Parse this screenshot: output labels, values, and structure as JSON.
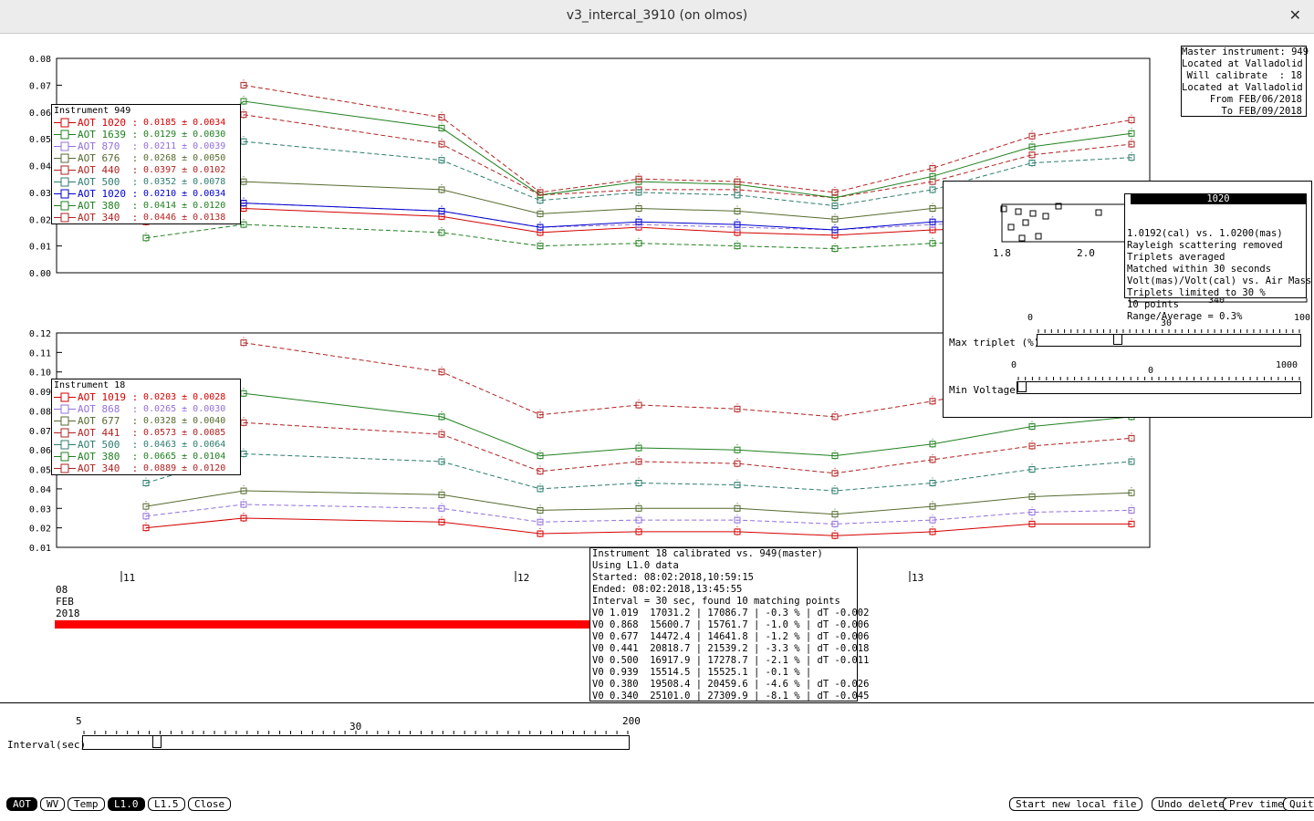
{
  "window": {
    "title": "v3_intercal_3910 (on olmos)",
    "close_glyph": "✕"
  },
  "top_axis_ticks": [
    "0.08",
    "0.07",
    "0.06",
    "0.05",
    "0.04",
    "0.03",
    "0.02",
    "0.01",
    "0.00"
  ],
  "bottom_axis_ticks": [
    "0.12",
    "0.11",
    "0.10",
    "0.09",
    "0.08",
    "0.07",
    "0.06",
    "0.05",
    "0.04",
    "0.03",
    "0.02",
    "0.01"
  ],
  "legend_top": {
    "title": "Instrument 949",
    "rows": [
      {
        "label": "AOT 1020 :",
        "value": "0.0185 ± 0.0034",
        "color": "#d40000",
        "marker": "square"
      },
      {
        "label": "AOT 1639 :",
        "value": "0.0129 ± 0.0030",
        "color": "#208020",
        "marker": "tri-down"
      },
      {
        "label": "AOT 870  :",
        "value": "0.0211 ± 0.0039",
        "color": "#9370db",
        "marker": "star"
      },
      {
        "label": "AOT 676  :",
        "value": "0.0268 ± 0.0050",
        "color": "#556b2f",
        "marker": "tri-up"
      },
      {
        "label": "AOT 440  :",
        "value": "0.0397 ± 0.0102",
        "color": "#b22222",
        "marker": "square"
      },
      {
        "label": "AOT 500  :",
        "value": "0.0352 ± 0.0078",
        "color": "#2e7d6e",
        "marker": "tri-down"
      },
      {
        "label": "AOT 1020 :",
        "value": "0.0210 ± 0.0034",
        "color": "#0000cc",
        "marker": "tri-up"
      },
      {
        "label": "AOT 380  :",
        "value": "0.0414 ± 0.0120",
        "color": "#208020",
        "marker": "star"
      },
      {
        "label": "AOT 340  :",
        "value": "0.0446 ± 0.0138",
        "color": "#b22222",
        "marker": "tri-up"
      }
    ]
  },
  "legend_bottom": {
    "title": "Instrument 18",
    "rows": [
      {
        "label": "AOT 1019 :",
        "value": "0.0203 ± 0.0028",
        "color": "#d40000",
        "marker": "square"
      },
      {
        "label": "AOT 868  :",
        "value": "0.0265 ± 0.0030",
        "color": "#9370db",
        "marker": "star"
      },
      {
        "label": "AOT 677  :",
        "value": "0.0328 ± 0.0040",
        "color": "#556b2f",
        "marker": "tri-up"
      },
      {
        "label": "AOT 441  :",
        "value": "0.0573 ± 0.0085",
        "color": "#b22222",
        "marker": "square"
      },
      {
        "label": "AOT 500  :",
        "value": "0.0463 ± 0.0064",
        "color": "#2e7d6e",
        "marker": "tri-down"
      },
      {
        "label": "AOT 380  :",
        "value": "0.0665 ± 0.0104",
        "color": "#208020",
        "marker": "star"
      },
      {
        "label": "AOT 340  :",
        "value": "0.0889 ± 0.0120",
        "color": "#b22222",
        "marker": "tri-up"
      }
    ]
  },
  "master_info": [
    "Master instrument: 949",
    "Located at Valladolid",
    "Will calibrate  : 18",
    "Located at Valladolid",
    "From FEB/06/2018",
    "To FEB/09/2018"
  ],
  "date_ticks": [
    "11",
    "12",
    "13"
  ],
  "date_label": [
    "08",
    "FEB",
    "2018"
  ],
  "calibration": [
    "Instrument 18 calibrated vs. 949(master)",
    "Using L1.0 data",
    "Started: 08:02:2018,10:59:15",
    "Ended: 08:02:2018,13:45:55",
    "Interval = 30 sec, found 10 matching points",
    "V0 1.019  17031.2 | 17086.7 | -0.3 % | dT -0.002",
    "V0 0.868  15600.7 | 15761.7 | -1.0 % | dT -0.006",
    "V0 0.677  14472.4 | 14641.8 | -1.2 % | dT -0.006",
    "V0 0.441  20818.7 | 21539.2 | -3.3 % | dT -0.018",
    "V0 0.500  16917.9 | 17278.7 | -2.1 % | dT -0.011",
    "V0 0.939  15514.5 | 15525.1 | -0.1 % |",
    "V0 0.380  19508.4 | 20459.6 | -4.6 % | dT -0.026",
    "V0 0.340  25101.0 | 27309.9 | -8.1 % | dT -0.045"
  ],
  "panel": {
    "info_header": "1020",
    "info_lines": [
      "1.0192(cal) vs. 1.0200(mas)",
      "Rayleigh scattering removed",
      "Triplets averaged",
      "Matched within 30 seconds",
      "Volt(mas)/Volt(cal) vs. Air Mass",
      "Triplets limited to 30 %",
      "10 points",
      "Range/Average = 0.3%"
    ],
    "mini_x_ticks": [
      "1.8",
      "2.0"
    ],
    "behind_label": "340",
    "max_triplet_label": "Max triplet (%)",
    "max_triplet_ticks": [
      "0",
      "30",
      "100"
    ],
    "max_triplet_value": 30,
    "min_voltage_label": "Min Voltage",
    "min_voltage_ticks": [
      "0",
      "0",
      "1000"
    ],
    "min_voltage_value": 0
  },
  "interval": {
    "label": "Interval(sec)",
    "ticks": [
      "5",
      "30",
      "200"
    ],
    "value": 30
  },
  "buttons_left": [
    {
      "label": "AOT",
      "on": true
    },
    {
      "label": "WV",
      "on": false
    },
    {
      "label": "Temp",
      "on": false
    },
    {
      "label": "L1.0",
      "on": true
    },
    {
      "label": "L1.5",
      "on": false
    },
    {
      "label": "Close",
      "on": false
    }
  ],
  "buttons_right": [
    "Start new local file",
    "Undo delete",
    "Prev time",
    "Quit"
  ]
}
